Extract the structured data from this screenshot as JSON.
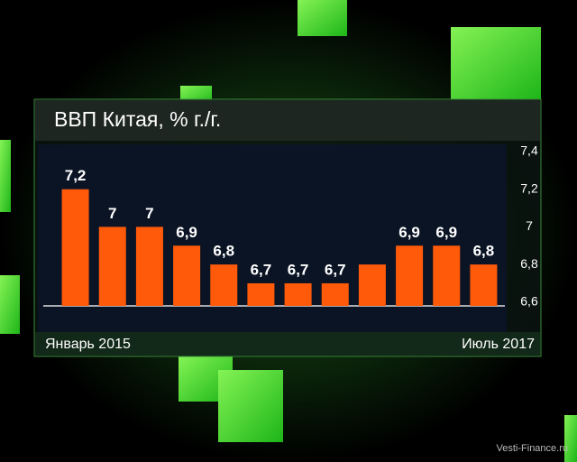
{
  "chart_data": {
    "type": "bar",
    "title": "ВВП Китая, % г./г.",
    "categories": [
      "Январь 2015",
      null,
      null,
      null,
      null,
      null,
      null,
      null,
      null,
      null,
      null,
      "Июль 2017"
    ],
    "values": [
      7.2,
      7,
      7,
      6.9,
      6.8,
      6.7,
      6.7,
      6.7,
      6.8,
      6.9,
      6.9,
      6.8
    ],
    "value_labels": [
      "7,2",
      "7",
      "7",
      "6,9",
      "6,8",
      "6,7",
      "6,7",
      "6,7",
      null,
      "6,9",
      "6,9",
      "6,8"
    ],
    "color": "#ff5a0a",
    "ylim": [
      6.58,
      7.4
    ],
    "yticks": [
      {
        "value": 6.6,
        "label": "6,6"
      },
      {
        "value": 6.8,
        "label": "6,8"
      },
      7,
      {
        "value": 7.2,
        "label": "7,2"
      },
      {
        "value": 7.4,
        "label": "7,4"
      }
    ],
    "watermark": "Vesti-Finance.ru"
  }
}
